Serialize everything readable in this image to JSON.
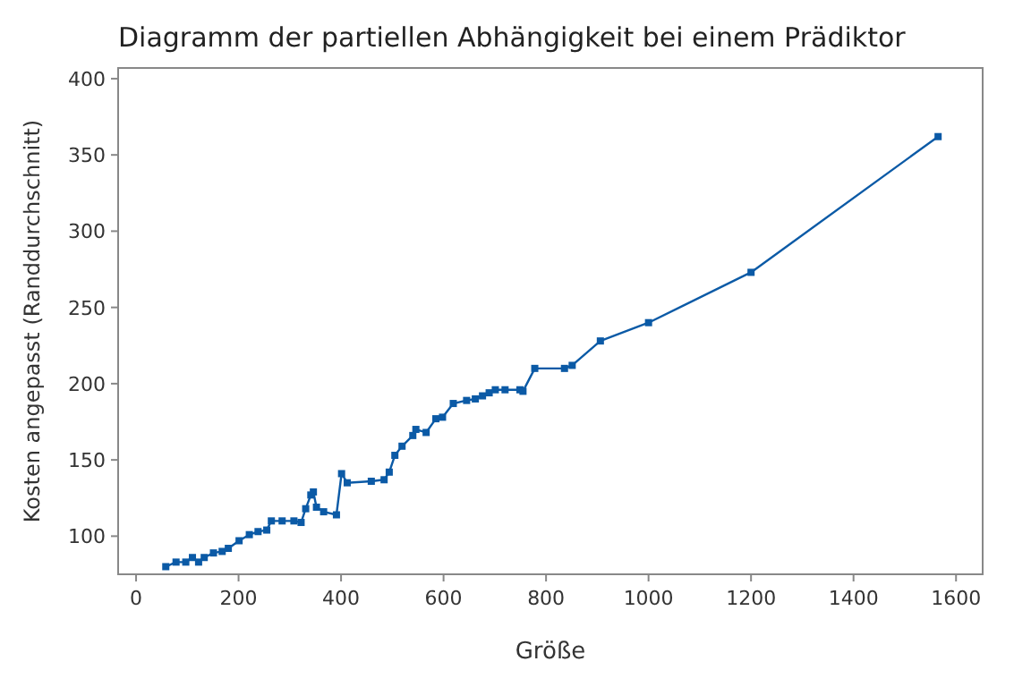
{
  "chart_data": {
    "type": "line",
    "title": "Diagramm der partiellen Abhängigkeit bei einem Prädiktor",
    "xlabel": "Größe",
    "ylabel": "Kosten angepasst (Randdurchschnitt)",
    "x": [
      58,
      78,
      97,
      110,
      122,
      133,
      151,
      168,
      180,
      201,
      221,
      238,
      255,
      264,
      285,
      308,
      322,
      331,
      341,
      346,
      352,
      366,
      391,
      401,
      412,
      459,
      484,
      494,
      505,
      519,
      540,
      546,
      566,
      585,
      598,
      619,
      645,
      662,
      676,
      689,
      701,
      720,
      749,
      755,
      778,
      836,
      851,
      906,
      1000,
      1200,
      1565
    ],
    "series": [
      {
        "color": "#0b5aa6",
        "values": [
          80,
          83,
          83,
          86,
          83,
          86,
          89,
          90,
          92,
          97,
          101,
          103,
          104,
          110,
          110,
          110,
          109,
          118,
          127,
          129,
          119,
          116,
          114,
          141,
          135,
          136,
          137,
          142,
          153,
          159,
          166,
          170,
          168,
          177,
          178,
          187,
          189,
          190,
          192,
          194,
          196,
          196,
          196,
          195,
          210,
          210,
          212,
          228,
          240,
          273,
          362
        ]
      }
    ],
    "xlim": [
      -35,
      1652
    ],
    "xticks": [
      0,
      200,
      400,
      600,
      800,
      1000,
      1200,
      1400,
      1600
    ],
    "ylim": [
      75,
      407
    ],
    "yticks": [
      100,
      150,
      200,
      250,
      300,
      350,
      400
    ],
    "marker": "square",
    "line_style": "solid"
  }
}
